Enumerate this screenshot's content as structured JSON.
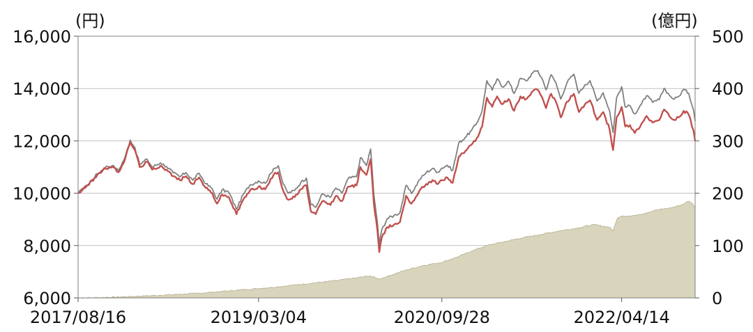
{
  "chart_data": {
    "type": "line",
    "left_unit": "(円)",
    "right_unit": "(億円)",
    "y_left": {
      "min": 6000,
      "max": 16000,
      "ticks": [
        6000,
        8000,
        10000,
        12000,
        14000,
        16000
      ],
      "tick_labels": [
        "6,000",
        "8,000",
        "10,000",
        "12,000",
        "14,000",
        "16,000"
      ]
    },
    "y_right": {
      "min": 0,
      "max": 500,
      "ticks": [
        0,
        100,
        200,
        300,
        400,
        500
      ],
      "tick_labels": [
        "0",
        "100",
        "200",
        "300",
        "400",
        "500"
      ]
    },
    "x_labels": [
      "2017/08/16",
      "2019/03/04",
      "2020/09/28",
      "2022/04/14"
    ],
    "x_range": [
      "2017/08/16",
      "2022/11/30"
    ],
    "grid": true,
    "colors": {
      "series_red": "#c0504d",
      "series_gray": "#7f7f7f",
      "area_fill": "#d9d4bc",
      "area_stroke": "#b3ad8e",
      "grid": "#bfbfbf"
    },
    "series": [
      {
        "axis": "left",
        "color": "#c0504d",
        "points": [
          [
            "2017-08-16",
            10000
          ],
          [
            "2017-09-15",
            10300
          ],
          [
            "2017-10-15",
            10700
          ],
          [
            "2017-11-10",
            10950
          ],
          [
            "2017-12-01",
            11000
          ],
          [
            "2017-12-20",
            10800
          ],
          [
            "2018-01-10",
            11300
          ],
          [
            "2018-01-26",
            11950
          ],
          [
            "2018-02-10",
            11650
          ],
          [
            "2018-02-25",
            11000
          ],
          [
            "2018-03-20",
            11200
          ],
          [
            "2018-04-05",
            10900
          ],
          [
            "2018-05-01",
            11050
          ],
          [
            "2018-05-20",
            10900
          ],
          [
            "2018-06-10",
            10650
          ],
          [
            "2018-07-01",
            10500
          ],
          [
            "2018-07-20",
            10650
          ],
          [
            "2018-08-10",
            10350
          ],
          [
            "2018-08-30",
            10600
          ],
          [
            "2018-09-20",
            10200
          ],
          [
            "2018-10-10",
            10000
          ],
          [
            "2018-10-25",
            9600
          ],
          [
            "2018-11-10",
            9950
          ],
          [
            "2018-12-01",
            9850
          ],
          [
            "2018-12-25",
            9200
          ],
          [
            "2019-01-15",
            9750
          ],
          [
            "2019-02-05",
            10100
          ],
          [
            "2019-03-04",
            10250
          ],
          [
            "2019-03-25",
            10150
          ],
          [
            "2019-04-20",
            10700
          ],
          [
            "2019-05-05",
            10800
          ],
          [
            "2019-05-20",
            10100
          ],
          [
            "2019-06-05",
            9750
          ],
          [
            "2019-06-25",
            9850
          ],
          [
            "2019-07-15",
            10150
          ],
          [
            "2019-08-01",
            10300
          ],
          [
            "2019-08-15",
            9300
          ],
          [
            "2019-08-30",
            9200
          ],
          [
            "2019-09-20",
            9700
          ],
          [
            "2019-10-15",
            9550
          ],
          [
            "2019-11-01",
            9900
          ],
          [
            "2019-11-20",
            9700
          ],
          [
            "2019-12-10",
            10250
          ],
          [
            "2020-01-05",
            10300
          ],
          [
            "2020-01-17",
            11000
          ],
          [
            "2020-02-05",
            10700
          ],
          [
            "2020-02-18",
            11300
          ],
          [
            "2020-02-28",
            9600
          ],
          [
            "2020-03-10",
            8600
          ],
          [
            "2020-03-16",
            7750
          ],
          [
            "2020-03-24",
            8300
          ],
          [
            "2020-04-10",
            8700
          ],
          [
            "2020-05-01",
            8800
          ],
          [
            "2020-05-20",
            8900
          ],
          [
            "2020-06-08",
            9900
          ],
          [
            "2020-06-25",
            9600
          ],
          [
            "2020-07-20",
            10100
          ],
          [
            "2020-08-10",
            10350
          ],
          [
            "2020-08-30",
            10500
          ],
          [
            "2020-09-15",
            10350
          ],
          [
            "2020-09-28",
            10500
          ],
          [
            "2020-10-15",
            10600
          ],
          [
            "2020-11-01",
            10400
          ],
          [
            "2020-11-20",
            11400
          ],
          [
            "2020-12-10",
            11600
          ],
          [
            "2020-12-30",
            11850
          ],
          [
            "2021-01-15",
            12100
          ],
          [
            "2021-02-01",
            12550
          ],
          [
            "2021-02-16",
            13650
          ],
          [
            "2021-03-05",
            13300
          ],
          [
            "2021-03-20",
            13700
          ],
          [
            "2021-04-05",
            13400
          ],
          [
            "2021-04-25",
            13600
          ],
          [
            "2021-05-12",
            13150
          ],
          [
            "2021-06-01",
            13700
          ],
          [
            "2021-06-20",
            13600
          ],
          [
            "2021-07-10",
            13900
          ],
          [
            "2021-07-25",
            13950
          ],
          [
            "2021-08-10",
            13600
          ],
          [
            "2021-08-20",
            13250
          ],
          [
            "2021-09-05",
            13800
          ],
          [
            "2021-09-20",
            13500
          ],
          [
            "2021-10-05",
            12900
          ],
          [
            "2021-10-25",
            13500
          ],
          [
            "2021-11-15",
            13800
          ],
          [
            "2021-12-01",
            13100
          ],
          [
            "2021-12-20",
            13400
          ],
          [
            "2022-01-05",
            13550
          ],
          [
            "2022-01-27",
            12800
          ],
          [
            "2022-02-15",
            13100
          ],
          [
            "2022-03-07",
            12450
          ],
          [
            "2022-03-18",
            11650
          ],
          [
            "2022-03-29",
            12900
          ],
          [
            "2022-04-14",
            13300
          ],
          [
            "2022-04-25",
            12550
          ],
          [
            "2022-05-10",
            12600
          ],
          [
            "2022-05-25",
            12300
          ],
          [
            "2022-06-15",
            12650
          ],
          [
            "2022-07-01",
            12950
          ],
          [
            "2022-07-20",
            12700
          ],
          [
            "2022-08-10",
            12800
          ],
          [
            "2022-08-25",
            13200
          ],
          [
            "2022-09-10",
            12950
          ],
          [
            "2022-09-25",
            12800
          ],
          [
            "2022-10-10",
            12900
          ],
          [
            "2022-10-25",
            13150
          ],
          [
            "2022-11-10",
            13000
          ],
          [
            "2022-11-25",
            12400
          ],
          [
            "2022-11-30",
            12000
          ]
        ]
      },
      {
        "axis": "left",
        "color": "#7f7f7f",
        "points": [
          [
            "2017-08-16",
            10000
          ],
          [
            "2017-09-15",
            10320
          ],
          [
            "2017-10-15",
            10740
          ],
          [
            "2017-11-10",
            11000
          ],
          [
            "2017-12-01",
            11060
          ],
          [
            "2017-12-20",
            10860
          ],
          [
            "2018-01-10",
            11370
          ],
          [
            "2018-01-26",
            12030
          ],
          [
            "2018-02-10",
            11740
          ],
          [
            "2018-02-25",
            11090
          ],
          [
            "2018-03-20",
            11300
          ],
          [
            "2018-04-05",
            11000
          ],
          [
            "2018-05-01",
            11160
          ],
          [
            "2018-05-20",
            11020
          ],
          [
            "2018-06-10",
            10780
          ],
          [
            "2018-07-01",
            10630
          ],
          [
            "2018-07-20",
            10790
          ],
          [
            "2018-08-10",
            10500
          ],
          [
            "2018-08-30",
            10760
          ],
          [
            "2018-09-20",
            10360
          ],
          [
            "2018-10-10",
            10170
          ],
          [
            "2018-10-25",
            9770
          ],
          [
            "2018-11-10",
            10130
          ],
          [
            "2018-12-01",
            10040
          ],
          [
            "2018-12-25",
            9390
          ],
          [
            "2019-01-15",
            9950
          ],
          [
            "2019-02-05",
            10310
          ],
          [
            "2019-03-04",
            10470
          ],
          [
            "2019-03-25",
            10380
          ],
          [
            "2019-04-20",
            10940
          ],
          [
            "2019-05-05",
            11050
          ],
          [
            "2019-05-20",
            10350
          ],
          [
            "2019-06-05",
            10000
          ],
          [
            "2019-06-25",
            10110
          ],
          [
            "2019-07-15",
            10420
          ],
          [
            "2019-08-01",
            10580
          ],
          [
            "2019-08-15",
            9560
          ],
          [
            "2019-08-30",
            9460
          ],
          [
            "2019-09-20",
            9980
          ],
          [
            "2019-10-15",
            9840
          ],
          [
            "2019-11-01",
            10200
          ],
          [
            "2019-11-20",
            10000
          ],
          [
            "2019-12-10",
            10570
          ],
          [
            "2020-01-05",
            10630
          ],
          [
            "2020-01-17",
            11360
          ],
          [
            "2020-02-05",
            11060
          ],
          [
            "2020-02-18",
            11690
          ],
          [
            "2020-02-28",
            9940
          ],
          [
            "2020-03-10",
            8910
          ],
          [
            "2020-03-16",
            8040
          ],
          [
            "2020-03-24",
            8610
          ],
          [
            "2020-04-10",
            9030
          ],
          [
            "2020-05-01",
            9150
          ],
          [
            "2020-05-20",
            9260
          ],
          [
            "2020-06-08",
            10300
          ],
          [
            "2020-06-25",
            9990
          ],
          [
            "2020-07-20",
            10520
          ],
          [
            "2020-08-10",
            10790
          ],
          [
            "2020-08-30",
            10950
          ],
          [
            "2020-09-15",
            10800
          ],
          [
            "2020-09-28",
            10960
          ],
          [
            "2020-10-15",
            11070
          ],
          [
            "2020-11-01",
            10870
          ],
          [
            "2020-11-20",
            11920
          ],
          [
            "2020-12-10",
            12130
          ],
          [
            "2020-12-30",
            12400
          ],
          [
            "2021-01-15",
            12670
          ],
          [
            "2021-02-01",
            13150
          ],
          [
            "2021-02-16",
            14300
          ],
          [
            "2021-03-05",
            13940
          ],
          [
            "2021-03-20",
            14370
          ],
          [
            "2021-04-05",
            14060
          ],
          [
            "2021-04-25",
            14280
          ],
          [
            "2021-05-12",
            13810
          ],
          [
            "2021-06-01",
            14390
          ],
          [
            "2021-06-20",
            14290
          ],
          [
            "2021-07-10",
            14610
          ],
          [
            "2021-07-25",
            14680
          ],
          [
            "2021-08-10",
            14320
          ],
          [
            "2021-08-20",
            13950
          ],
          [
            "2021-09-05",
            14530
          ],
          [
            "2021-09-20",
            14220
          ],
          [
            "2021-10-05",
            13600
          ],
          [
            "2021-10-25",
            14230
          ],
          [
            "2021-11-15",
            14550
          ],
          [
            "2021-12-01",
            13820
          ],
          [
            "2021-12-20",
            14140
          ],
          [
            "2022-01-05",
            14300
          ],
          [
            "2022-01-27",
            13520
          ],
          [
            "2022-02-15",
            13840
          ],
          [
            "2022-03-07",
            13160
          ],
          [
            "2022-03-18",
            12320
          ],
          [
            "2022-03-29",
            13640
          ],
          [
            "2022-04-14",
            14070
          ],
          [
            "2022-04-25",
            13290
          ],
          [
            "2022-05-10",
            13340
          ],
          [
            "2022-05-25",
            13030
          ],
          [
            "2022-06-15",
            13410
          ],
          [
            "2022-07-01",
            13730
          ],
          [
            "2022-07-20",
            13470
          ],
          [
            "2022-08-10",
            13580
          ],
          [
            "2022-08-25",
            14010
          ],
          [
            "2022-09-10",
            13750
          ],
          [
            "2022-09-25",
            13590
          ],
          [
            "2022-10-10",
            13700
          ],
          [
            "2022-10-25",
            13970
          ],
          [
            "2022-11-10",
            13820
          ],
          [
            "2022-11-25",
            13180
          ],
          [
            "2022-11-30",
            12760
          ]
        ]
      },
      {
        "axis": "right",
        "type": "area",
        "color": "#d9d4bc",
        "points": [
          [
            "2017-08-16",
            0
          ],
          [
            "2017-10-01",
            0.3
          ],
          [
            "2017-11-15",
            1
          ],
          [
            "2018-01-01",
            2
          ],
          [
            "2018-03-01",
            3.5
          ],
          [
            "2018-05-01",
            5
          ],
          [
            "2018-07-01",
            7
          ],
          [
            "2018-09-01",
            9
          ],
          [
            "2018-11-01",
            12
          ],
          [
            "2019-01-01",
            15
          ],
          [
            "2019-03-04",
            18
          ],
          [
            "2019-05-01",
            21
          ],
          [
            "2019-07-01",
            25
          ],
          [
            "2019-09-01",
            29
          ],
          [
            "2019-11-01",
            33
          ],
          [
            "2020-01-01",
            38
          ],
          [
            "2020-02-15",
            42
          ],
          [
            "2020-03-16",
            36
          ],
          [
            "2020-04-15",
            42
          ],
          [
            "2020-06-01",
            52
          ],
          [
            "2020-08-01",
            62
          ],
          [
            "2020-09-28",
            68
          ],
          [
            "2020-11-15",
            78
          ],
          [
            "2021-01-01",
            90
          ],
          [
            "2021-02-15",
            100
          ],
          [
            "2021-04-01",
            106
          ],
          [
            "2021-06-01",
            114
          ],
          [
            "2021-08-01",
            121
          ],
          [
            "2021-10-01",
            128
          ],
          [
            "2021-12-01",
            134
          ],
          [
            "2022-01-15",
            140
          ],
          [
            "2022-03-08",
            135
          ],
          [
            "2022-03-18",
            128
          ],
          [
            "2022-04-01",
            153
          ],
          [
            "2022-04-14",
            156
          ],
          [
            "2022-06-01",
            158
          ],
          [
            "2022-08-01",
            168
          ],
          [
            "2022-09-15",
            172
          ],
          [
            "2022-10-20",
            178
          ],
          [
            "2022-11-10",
            185
          ],
          [
            "2022-11-22",
            180
          ],
          [
            "2022-11-30",
            173
          ]
        ]
      }
    ]
  }
}
